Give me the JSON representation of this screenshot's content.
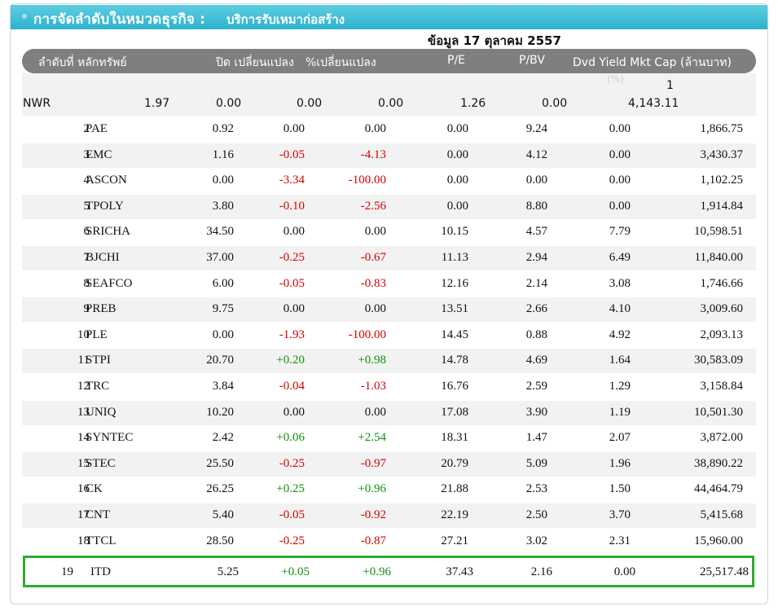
{
  "title": "การจัดลำดับในหมวดธุรกิจ :",
  "subtitle": "บริการรับเหมาก่อสร้าง",
  "date": "ข้อมูล 17 ตุลาคม 2557",
  "headers": {
    "rank_symbol": "ลำดับที่ หลักทรัพย์",
    "close_change": "ปิด เปลี่ยนแปลง",
    "pct_change": "%เปลี่ยนแปลง",
    "pe": "P/E",
    "pbv": "P/BV",
    "dvd_mkt": "Dvd Yield Mkt Cap (ล้านบาท)",
    "unit": "(%)"
  },
  "first_row": {
    "rank": "1",
    "symbol": "NWR",
    "close": "1.97",
    "change": "0.00",
    "pct": "0.00",
    "pe": "0.00",
    "pbv": "1.26",
    "dvd": "0.00",
    "mkt": "4,143.11"
  },
  "rows": [
    {
      "rank": "2",
      "symbol": "PAE",
      "close": "0.92",
      "change": "0.00",
      "pct": "0.00",
      "pe": "0.00",
      "pbv": "9.24",
      "dvd": "0.00",
      "mkt": "1,866.75"
    },
    {
      "rank": "3",
      "symbol": "EMC",
      "close": "1.16",
      "change": "-0.05",
      "pct": "-4.13",
      "pe": "0.00",
      "pbv": "4.12",
      "dvd": "0.00",
      "mkt": "3,430.37"
    },
    {
      "rank": "4",
      "symbol": "ASCON",
      "close": "0.00",
      "change": "-3.34",
      "pct": "-100.00",
      "pe": "0.00",
      "pbv": "0.00",
      "dvd": "0.00",
      "mkt": "1,102.25"
    },
    {
      "rank": "5",
      "symbol": "TPOLY",
      "close": "3.80",
      "change": "-0.10",
      "pct": "-2.56",
      "pe": "0.00",
      "pbv": "8.80",
      "dvd": "0.00",
      "mkt": "1,914.84"
    },
    {
      "rank": "6",
      "symbol": "SRICHA",
      "close": "34.50",
      "change": "0.00",
      "pct": "0.00",
      "pe": "10.15",
      "pbv": "4.57",
      "dvd": "7.79",
      "mkt": "10,598.51"
    },
    {
      "rank": "7",
      "symbol": "BJCHI",
      "close": "37.00",
      "change": "-0.25",
      "pct": "-0.67",
      "pe": "11.13",
      "pbv": "2.94",
      "dvd": "6.49",
      "mkt": "11,840.00"
    },
    {
      "rank": "8",
      "symbol": "SEAFCO",
      "close": "6.00",
      "change": "-0.05",
      "pct": "-0.83",
      "pe": "12.16",
      "pbv": "2.14",
      "dvd": "3.08",
      "mkt": "1,746.66"
    },
    {
      "rank": "9",
      "symbol": "PREB",
      "close": "9.75",
      "change": "0.00",
      "pct": "0.00",
      "pe": "13.51",
      "pbv": "2.66",
      "dvd": "4.10",
      "mkt": "3,009.60"
    },
    {
      "rank": "10",
      "symbol": "PLE",
      "close": "0.00",
      "change": "-1.93",
      "pct": "-100.00",
      "pe": "14.45",
      "pbv": "0.88",
      "dvd": "4.92",
      "mkt": "2,093.13"
    },
    {
      "rank": "11",
      "symbol": "STPI",
      "close": "20.70",
      "change": "+0.20",
      "pct": "+0.98",
      "pe": "14.78",
      "pbv": "4.69",
      "dvd": "1.64",
      "mkt": "30,583.09"
    },
    {
      "rank": "12",
      "symbol": "TRC",
      "close": "3.84",
      "change": "-0.04",
      "pct": "-1.03",
      "pe": "16.76",
      "pbv": "2.59",
      "dvd": "1.29",
      "mkt": "3,158.84"
    },
    {
      "rank": "13",
      "symbol": "UNIQ",
      "close": "10.20",
      "change": "0.00",
      "pct": "0.00",
      "pe": "17.08",
      "pbv": "3.90",
      "dvd": "1.19",
      "mkt": "10,501.30"
    },
    {
      "rank": "14",
      "symbol": "SYNTEC",
      "close": "2.42",
      "change": "+0.06",
      "pct": "+2.54",
      "pe": "18.31",
      "pbv": "1.47",
      "dvd": "2.07",
      "mkt": "3,872.00"
    },
    {
      "rank": "15",
      "symbol": "STEC",
      "close": "25.50",
      "change": "-0.25",
      "pct": "-0.97",
      "pe": "20.79",
      "pbv": "5.09",
      "dvd": "1.96",
      "mkt": "38,890.22"
    },
    {
      "rank": "16",
      "symbol": "CK",
      "close": "26.25",
      "change": "+0.25",
      "pct": "+0.96",
      "pe": "21.88",
      "pbv": "2.53",
      "dvd": "1.50",
      "mkt": "44,464.79"
    },
    {
      "rank": "17",
      "symbol": "CNT",
      "close": "5.40",
      "change": "-0.05",
      "pct": "-0.92",
      "pe": "22.19",
      "pbv": "2.50",
      "dvd": "3.70",
      "mkt": "5,415.68"
    },
    {
      "rank": "18",
      "symbol": "TTCL",
      "close": "28.50",
      "change": "-0.25",
      "pct": "-0.87",
      "pe": "27.21",
      "pbv": "3.02",
      "dvd": "2.31",
      "mkt": "15,960.00"
    }
  ],
  "highlight_row": {
    "rank": "19",
    "symbol": "ITD",
    "close": "5.25",
    "change": "+0.05",
    "pct": "+0.96",
    "pe": "37.43",
    "pbv": "2.16",
    "dvd": "0.00",
    "mkt": "25,517.48"
  },
  "colors": {
    "title_bar": "#2bb3cf",
    "header": "#7f7f7f",
    "negative": "#d40000",
    "positive": "#109010",
    "highlight_border": "#2eaa2e"
  }
}
